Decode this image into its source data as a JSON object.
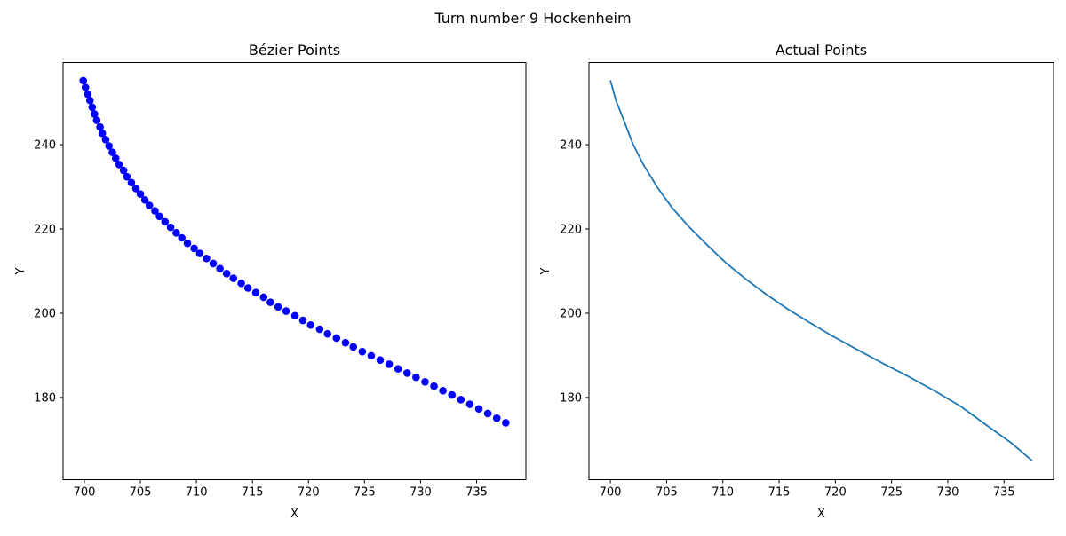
{
  "figure": {
    "suptitle": "Turn number 9 Hockenheim",
    "colors": {
      "bezier_points": "#0000ff",
      "actual_line": "#1f77b4",
      "axes": "#000000"
    }
  },
  "chart_data": [
    {
      "type": "scatter",
      "title": "Bézier Points",
      "xlabel": "X",
      "ylabel": "Y",
      "xlim": [
        698.1,
        739.4
      ],
      "ylim": [
        160.5,
        259.5
      ],
      "xticks": [
        700,
        705,
        710,
        715,
        720,
        725,
        730,
        735
      ],
      "yticks": [
        180,
        200,
        220,
        240
      ],
      "grid": false,
      "series": [
        {
          "marker": "circle",
          "color": "#0000ff",
          "x": [
            699.9,
            700.1,
            700.3,
            700.5,
            700.7,
            700.9,
            701.1,
            701.4,
            701.6,
            701.9,
            702.2,
            702.5,
            702.8,
            703.1,
            703.5,
            703.8,
            704.2,
            704.6,
            705.0,
            705.4,
            705.8,
            706.3,
            706.7,
            707.2,
            707.7,
            708.2,
            708.7,
            709.2,
            709.8,
            710.3,
            710.9,
            711.5,
            712.1,
            712.7,
            713.3,
            714.0,
            714.6,
            715.3,
            716.0,
            716.6,
            717.3,
            718.0,
            718.8,
            719.5,
            720.2,
            721.0,
            721.7,
            722.5,
            723.3,
            724.0,
            724.8,
            725.6,
            726.4,
            727.2,
            728.0,
            728.8,
            729.6,
            730.4,
            731.2,
            732.0,
            732.8,
            733.6,
            734.4,
            735.2,
            736.0,
            736.8,
            737.6
          ],
          "y": [
            255.2,
            253.6,
            252.0,
            250.5,
            248.9,
            247.3,
            245.8,
            244.2,
            242.7,
            241.2,
            239.7,
            238.2,
            236.8,
            235.3,
            233.9,
            232.4,
            231.0,
            229.6,
            228.3,
            226.9,
            225.6,
            224.3,
            223.0,
            221.7,
            220.4,
            219.1,
            217.9,
            216.6,
            215.4,
            214.2,
            213.0,
            211.8,
            210.6,
            209.4,
            208.3,
            207.1,
            206.0,
            204.9,
            203.8,
            202.6,
            201.5,
            200.5,
            199.4,
            198.3,
            197.2,
            196.2,
            195.1,
            194.1,
            193.0,
            192.0,
            190.9,
            189.9,
            188.9,
            187.9,
            186.8,
            185.8,
            184.8,
            183.7,
            182.7,
            181.6,
            180.6,
            179.5,
            178.4,
            177.3,
            176.2,
            175.1,
            174.0
          ]
        }
      ]
    },
    {
      "type": "line",
      "title": "Actual Points",
      "xlabel": "X",
      "ylabel": "Y",
      "xlim": [
        698.1,
        739.4
      ],
      "ylim": [
        160.5,
        259.5
      ],
      "xticks": [
        700,
        705,
        710,
        715,
        720,
        725,
        730,
        735
      ],
      "yticks": [
        180,
        200,
        220,
        240
      ],
      "grid": false,
      "series": [
        {
          "color": "#1f77b4",
          "x": [
            700.0,
            700.5,
            701.2,
            702.0,
            703.0,
            704.2,
            705.5,
            707.0,
            708.6,
            710.3,
            712.0,
            713.8,
            715.7,
            717.7,
            719.8,
            722.0,
            724.3,
            726.7,
            729.0,
            731.2,
            733.4,
            735.6,
            737.5
          ],
          "y": [
            255.3,
            250.5,
            245.8,
            240.2,
            235.0,
            229.8,
            225.0,
            220.5,
            216.2,
            211.9,
            208.2,
            204.6,
            201.1,
            197.8,
            194.5,
            191.3,
            188.0,
            184.7,
            181.3,
            177.8,
            173.5,
            169.3,
            165.0
          ]
        }
      ]
    }
  ]
}
